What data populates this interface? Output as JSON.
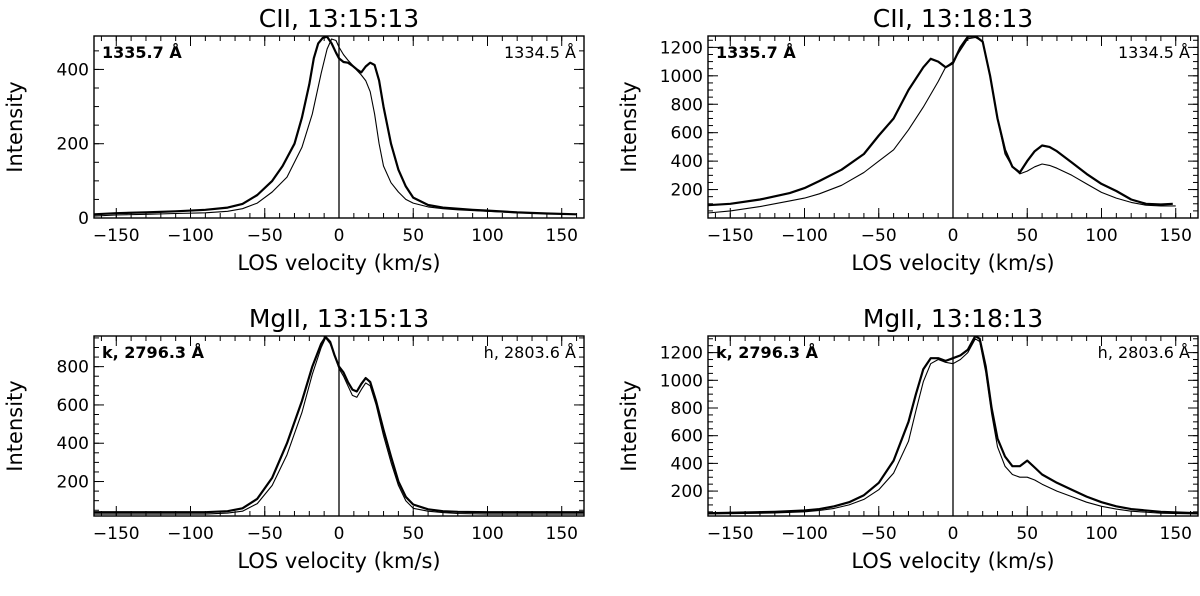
{
  "chart_data": [
    {
      "type": "line",
      "title": "CII, 13:15:13",
      "xlabel": "LOS velocity (km/s)",
      "ylabel": "Intensity",
      "xlim": [
        -165,
        165
      ],
      "ylim": [
        0,
        490
      ],
      "xticks": [
        -150,
        -100,
        -50,
        0,
        50,
        100,
        150
      ],
      "xtick_labels": [
        "−150",
        "−100",
        "−50",
        "0",
        "50",
        "100",
        "150"
      ],
      "yticks": [
        0,
        200,
        400
      ],
      "ytick_labels": [
        "0",
        "200",
        "400"
      ],
      "x_minor_step": 10,
      "y_minor_step": 50,
      "zero_line": 0,
      "legend": {
        "left": "1335.7 Å",
        "right": "1334.5 Å"
      },
      "series": [
        {
          "name": "1335.7 Å",
          "style": "thick",
          "x": [
            -165,
            -150,
            -130,
            -110,
            -90,
            -75,
            -65,
            -55,
            -45,
            -38,
            -30,
            -25,
            -20,
            -17,
            -14,
            -11,
            -8,
            -5,
            -2,
            0,
            3,
            6,
            9,
            12,
            15,
            18,
            21,
            24,
            27,
            30,
            35,
            40,
            45,
            50,
            60,
            70,
            80,
            90,
            100,
            120,
            140,
            160
          ],
          "y": [
            10,
            13,
            15,
            18,
            22,
            28,
            38,
            62,
            100,
            140,
            200,
            270,
            360,
            430,
            470,
            485,
            488,
            470,
            445,
            430,
            420,
            418,
            410,
            400,
            392,
            408,
            418,
            412,
            370,
            300,
            200,
            130,
            85,
            55,
            35,
            28,
            25,
            22,
            20,
            15,
            12,
            10
          ]
        },
        {
          "name": "1334.5 Å",
          "style": "thin",
          "x": [
            -165,
            -150,
            -130,
            -110,
            -90,
            -75,
            -65,
            -55,
            -45,
            -35,
            -25,
            -18,
            -12,
            -8,
            -5,
            -2,
            0,
            3,
            6,
            9,
            12,
            15,
            18,
            21,
            24,
            27,
            30,
            35,
            40,
            45,
            50,
            60,
            70,
            80,
            90,
            100,
            120,
            140,
            160
          ],
          "y": [
            5,
            8,
            10,
            12,
            14,
            18,
            25,
            40,
            70,
            110,
            190,
            280,
            390,
            455,
            482,
            478,
            460,
            440,
            425,
            412,
            398,
            385,
            370,
            340,
            280,
            200,
            140,
            95,
            70,
            50,
            40,
            30,
            25,
            22,
            20,
            18,
            14,
            12,
            10
          ]
        }
      ]
    },
    {
      "type": "line",
      "title": "CII, 13:18:13",
      "xlabel": "LOS velocity (km/s)",
      "ylabel": "Intensity",
      "xlim": [
        -165,
        165
      ],
      "ylim": [
        0,
        1280
      ],
      "xticks": [
        -150,
        -100,
        -50,
        0,
        50,
        100,
        150
      ],
      "xtick_labels": [
        "−150",
        "−100",
        "−50",
        "0",
        "50",
        "100",
        "150"
      ],
      "yticks": [
        200,
        400,
        600,
        800,
        1000,
        1200
      ],
      "ytick_labels": [
        "200",
        "400",
        "600",
        "800",
        "1000",
        "1200"
      ],
      "x_minor_step": 10,
      "y_minor_step": 50,
      "zero_line": 0,
      "legend": {
        "left": "1335.7 Å",
        "right": "1334.5 Å"
      },
      "series": [
        {
          "name": "1335.7 Å",
          "style": "thick",
          "x": [
            -165,
            -150,
            -130,
            -110,
            -100,
            -90,
            -75,
            -60,
            -50,
            -40,
            -30,
            -20,
            -15,
            -10,
            -5,
            0,
            5,
            10,
            15,
            20,
            25,
            30,
            35,
            40,
            45,
            50,
            55,
            60,
            65,
            70,
            80,
            90,
            100,
            110,
            120,
            130,
            140,
            148
          ],
          "y": [
            90,
            100,
            130,
            175,
            210,
            260,
            340,
            450,
            580,
            700,
            900,
            1060,
            1120,
            1100,
            1060,
            1090,
            1200,
            1275,
            1280,
            1240,
            1000,
            700,
            480,
            360,
            320,
            400,
            470,
            510,
            500,
            470,
            390,
            310,
            240,
            190,
            130,
            100,
            95,
            100
          ]
        },
        {
          "name": "1334.5 Å",
          "style": "thin",
          "x": [
            -165,
            -150,
            -130,
            -110,
            -100,
            -90,
            -75,
            -60,
            -50,
            -40,
            -30,
            -20,
            -10,
            -5,
            0,
            5,
            10,
            15,
            20,
            25,
            30,
            35,
            40,
            45,
            50,
            55,
            60,
            65,
            70,
            80,
            90,
            100,
            110,
            120,
            130,
            140,
            150
          ],
          "y": [
            35,
            50,
            80,
            120,
            140,
            170,
            230,
            320,
            400,
            480,
            620,
            780,
            960,
            1060,
            1100,
            1180,
            1260,
            1270,
            1240,
            1000,
            700,
            450,
            360,
            310,
            330,
            360,
            380,
            370,
            350,
            300,
            240,
            180,
            140,
            110,
            90,
            85,
            85
          ]
        }
      ]
    },
    {
      "type": "line",
      "title": "MgII, 13:15:13",
      "xlabel": "LOS velocity (km/s)",
      "ylabel": "Intensity",
      "xlim": [
        -165,
        165
      ],
      "ylim": [
        20,
        960
      ],
      "xticks": [
        -150,
        -100,
        -50,
        0,
        50,
        100,
        150
      ],
      "xtick_labels": [
        "−150",
        "−100",
        "−50",
        "0",
        "50",
        "100",
        "150"
      ],
      "yticks": [
        200,
        400,
        600,
        800
      ],
      "ytick_labels": [
        "200",
        "400",
        "600",
        "800"
      ],
      "x_minor_step": 10,
      "y_minor_step": 50,
      "zero_line": 0,
      "legend": {
        "left": "k, 2796.3 Å",
        "right": "h, 2803.6 Å"
      },
      "series": [
        {
          "name": "k, 2796.3 Å",
          "style": "thick",
          "x": [
            -165,
            -120,
            -90,
            -75,
            -65,
            -55,
            -45,
            -35,
            -25,
            -18,
            -12,
            -9,
            -6,
            -3,
            0,
            3,
            6,
            9,
            12,
            15,
            18,
            21,
            25,
            30,
            35,
            40,
            45,
            50,
            60,
            70,
            80,
            100,
            130,
            165
          ],
          "y": [
            40,
            40,
            40,
            45,
            60,
            110,
            220,
            400,
            620,
            800,
            920,
            955,
            930,
            860,
            800,
            770,
            720,
            680,
            670,
            710,
            740,
            720,
            620,
            470,
            330,
            200,
            120,
            80,
            55,
            45,
            42,
            40,
            40,
            40
          ]
        },
        {
          "name": "h, 2803.6 Å",
          "style": "thin",
          "x": [
            -165,
            -120,
            -90,
            -75,
            -65,
            -55,
            -45,
            -35,
            -25,
            -18,
            -12,
            -9,
            -6,
            -3,
            0,
            3,
            6,
            9,
            12,
            15,
            18,
            21,
            25,
            30,
            35,
            40,
            45,
            50,
            60,
            70,
            80,
            100,
            130,
            165
          ],
          "y": [
            30,
            30,
            30,
            35,
            45,
            85,
            180,
            340,
            560,
            760,
            900,
            950,
            920,
            860,
            790,
            750,
            700,
            650,
            640,
            680,
            715,
            700,
            600,
            440,
            300,
            180,
            100,
            60,
            45,
            38,
            33,
            30,
            30,
            30
          ]
        }
      ]
    },
    {
      "type": "line",
      "title": "MgII, 13:18:13",
      "xlabel": "LOS velocity (km/s)",
      "ylabel": "Intensity",
      "xlim": [
        -165,
        165
      ],
      "ylim": [
        20,
        1320
      ],
      "xticks": [
        -150,
        -100,
        -50,
        0,
        50,
        100,
        150
      ],
      "xtick_labels": [
        "−150",
        "−100",
        "−50",
        "0",
        "50",
        "100",
        "150"
      ],
      "yticks": [
        200,
        400,
        600,
        800,
        1000,
        1200
      ],
      "ytick_labels": [
        "200",
        "400",
        "600",
        "800",
        "1000",
        "1200"
      ],
      "x_minor_step": 10,
      "y_minor_step": 50,
      "zero_line": 0,
      "legend": {
        "left": "k, 2796.3 Å",
        "right": "h, 2803.6 Å"
      },
      "series": [
        {
          "name": "k, 2796.3 Å",
          "style": "thick",
          "x": [
            -165,
            -140,
            -120,
            -100,
            -90,
            -80,
            -70,
            -60,
            -50,
            -40,
            -30,
            -25,
            -20,
            -15,
            -10,
            -5,
            0,
            5,
            10,
            15,
            18,
            22,
            26,
            30,
            35,
            40,
            45,
            50,
            55,
            60,
            70,
            80,
            90,
            100,
            110,
            120,
            140,
            165
          ],
          "y": [
            40,
            45,
            50,
            60,
            70,
            90,
            120,
            170,
            260,
            420,
            700,
            900,
            1080,
            1160,
            1160,
            1140,
            1160,
            1180,
            1220,
            1320,
            1300,
            1100,
            800,
            580,
            450,
            380,
            380,
            420,
            370,
            320,
            260,
            210,
            160,
            120,
            90,
            70,
            50,
            40
          ]
        },
        {
          "name": "h, 2803.6 Å",
          "style": "thin",
          "x": [
            -165,
            -140,
            -120,
            -100,
            -90,
            -80,
            -70,
            -60,
            -50,
            -40,
            -30,
            -25,
            -20,
            -15,
            -10,
            -5,
            0,
            5,
            10,
            15,
            18,
            22,
            26,
            30,
            35,
            40,
            45,
            50,
            55,
            60,
            70,
            80,
            90,
            100,
            110,
            120,
            140,
            165
          ],
          "y": [
            35,
            38,
            42,
            50,
            60,
            75,
            100,
            140,
            210,
            330,
            560,
            780,
            990,
            1120,
            1150,
            1130,
            1120,
            1150,
            1200,
            1300,
            1280,
            1060,
            760,
            520,
            380,
            320,
            300,
            300,
            280,
            250,
            200,
            160,
            120,
            90,
            70,
            55,
            40,
            35
          ]
        }
      ]
    }
  ]
}
